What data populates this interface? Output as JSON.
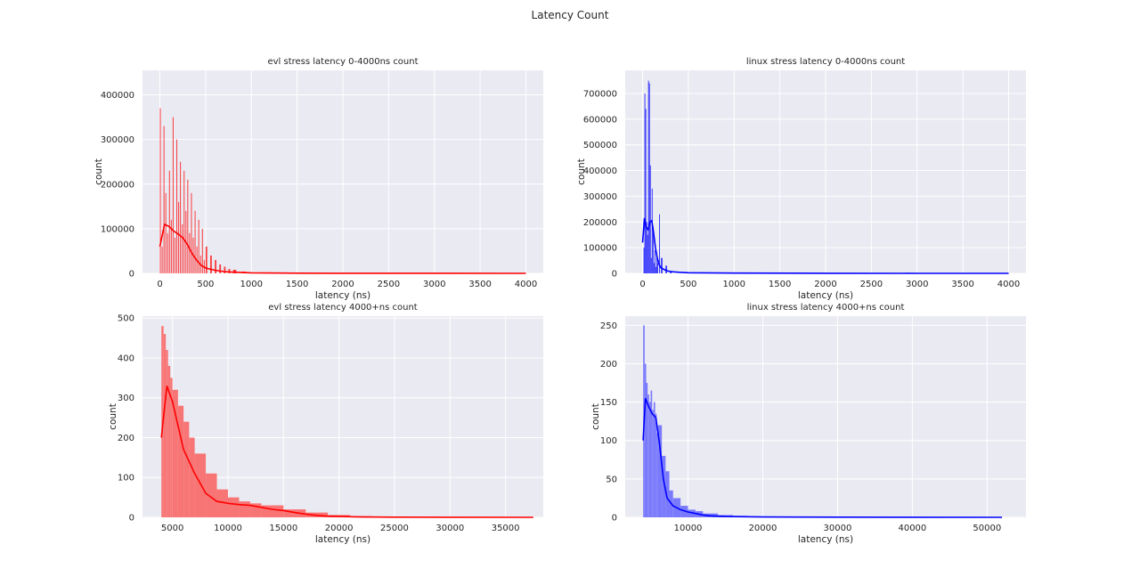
{
  "figure": {
    "title": "Latency Count",
    "background": "#ffffff",
    "axes_facecolor": "#eaeaf2",
    "grid_color": "#ffffff"
  },
  "chart_data": [
    {
      "type": "bar",
      "title": "evl stress latency 0-4000ns count",
      "xlabel": "latency (ns)",
      "ylabel": "count",
      "color": "#ff0000",
      "xlim": [
        -190,
        4190
      ],
      "ylim": [
        0,
        455000
      ],
      "xticks": [
        0,
        500,
        1000,
        1500,
        2000,
        2500,
        3000,
        3500,
        4000
      ],
      "yticks": [
        0,
        100000,
        200000,
        300000,
        400000
      ],
      "grid": true,
      "histogram_x": [
        0,
        20,
        40,
        60,
        80,
        100,
        120,
        140,
        160,
        180,
        200,
        220,
        240,
        260,
        280,
        300,
        320,
        340,
        360,
        380,
        400,
        420,
        440,
        460,
        480,
        500,
        550,
        600,
        650,
        700,
        750,
        800,
        900,
        1000
      ],
      "histogram_counts": [
        370000,
        60000,
        330000,
        180000,
        90000,
        230000,
        120000,
        350000,
        80000,
        300000,
        160000,
        250000,
        110000,
        230000,
        140000,
        210000,
        90000,
        180000,
        80000,
        140000,
        60000,
        120000,
        40000,
        100000,
        30000,
        60000,
        40000,
        30000,
        20000,
        15000,
        10000,
        8000,
        4000,
        2000
      ],
      "kde_x": [
        0,
        50,
        100,
        150,
        200,
        250,
        300,
        350,
        400,
        450,
        500,
        600,
        700,
        800,
        1000,
        1500,
        2000,
        3000,
        4000
      ],
      "kde_y": [
        60000,
        110000,
        105000,
        95000,
        88000,
        80000,
        65000,
        45000,
        30000,
        18000,
        12000,
        7000,
        4000,
        2500,
        1200,
        400,
        200,
        100,
        50
      ]
    },
    {
      "type": "bar",
      "title": "linux stress latency 0-4000ns count",
      "xlabel": "latency (ns)",
      "ylabel": "count",
      "color": "#0000ff",
      "xlim": [
        -190,
        4190
      ],
      "ylim": [
        0,
        790000
      ],
      "xticks": [
        0,
        500,
        1000,
        1500,
        2000,
        2500,
        3000,
        3500,
        4000
      ],
      "yticks": [
        0,
        100000,
        200000,
        300000,
        400000,
        500000,
        600000,
        700000
      ],
      "grid": true,
      "histogram_x": [
        10,
        20,
        30,
        40,
        50,
        60,
        70,
        80,
        90,
        100,
        110,
        120,
        130,
        140,
        150,
        160,
        180,
        200,
        250,
        300
      ],
      "histogram_counts": [
        100000,
        700000,
        640000,
        200000,
        150000,
        750000,
        740000,
        420000,
        60000,
        330000,
        180000,
        40000,
        90000,
        25000,
        80000,
        40000,
        230000,
        60000,
        30000,
        10000
      ],
      "kde_x": [
        0,
        20,
        40,
        60,
        80,
        100,
        120,
        140,
        160,
        180,
        200,
        250,
        300,
        400,
        500,
        1000,
        2000,
        3000,
        4000
      ],
      "kde_y": [
        120000,
        215000,
        180000,
        170000,
        200000,
        205000,
        160000,
        100000,
        60000,
        35000,
        22000,
        12000,
        7000,
        4000,
        2500,
        1000,
        300,
        100,
        50
      ]
    },
    {
      "type": "bar",
      "title": "evl stress latency 4000+ns count",
      "xlabel": "latency (ns)",
      "ylabel": "count",
      "color": "#ff0000",
      "bar_fill": "#f87575",
      "xlim": [
        2300,
        38400
      ],
      "ylim": [
        0,
        505
      ],
      "xticks": [
        5000,
        10000,
        15000,
        20000,
        25000,
        30000,
        35000
      ],
      "yticks": [
        0,
        100,
        200,
        300,
        400,
        500
      ],
      "grid": true,
      "histogram_x": [
        4000,
        4200,
        4400,
        4600,
        4800,
        5000,
        5500,
        6000,
        6500,
        7000,
        8000,
        9000,
        10000,
        11000,
        12000,
        13000,
        15000,
        17000,
        19000,
        21000
      ],
      "histogram_counts": [
        480,
        460,
        420,
        380,
        350,
        320,
        280,
        240,
        200,
        160,
        110,
        70,
        50,
        40,
        35,
        30,
        20,
        12,
        6,
        3
      ],
      "kde_x": [
        4000,
        4500,
        5000,
        5500,
        6000,
        7000,
        8000,
        9000,
        10000,
        11000,
        12000,
        13000,
        14000,
        15000,
        16000,
        17000,
        18000,
        19000,
        20000,
        22000,
        25000,
        30000,
        37500
      ],
      "kde_y": [
        200,
        330,
        290,
        230,
        170,
        110,
        60,
        40,
        35,
        32,
        30,
        25,
        20,
        17,
        12,
        8,
        5,
        3,
        2,
        1,
        0.5,
        0.2,
        0
      ]
    },
    {
      "type": "bar",
      "title": "linux stress latency 4000+ns count",
      "xlabel": "latency (ns)",
      "ylabel": "count",
      "color": "#0000ff",
      "bar_fill": "#7a7afc",
      "xlim": [
        1600,
        55200
      ],
      "ylim": [
        0,
        262
      ],
      "xticks": [
        10000,
        20000,
        30000,
        40000,
        50000
      ],
      "yticks": [
        0,
        50,
        100,
        150,
        200,
        250
      ],
      "grid": true,
      "histogram_x": [
        4000,
        4200,
        4400,
        4600,
        4800,
        5000,
        5200,
        5400,
        5600,
        5800,
        6000,
        6500,
        7000,
        7500,
        8000,
        9000,
        10000,
        11000,
        12000,
        14000,
        16000
      ],
      "histogram_counts": [
        250,
        200,
        175,
        160,
        150,
        165,
        140,
        150,
        135,
        110,
        120,
        80,
        60,
        35,
        25,
        15,
        10,
        8,
        5,
        3,
        2
      ],
      "kde_x": [
        4000,
        4300,
        4700,
        5200,
        5700,
        6200,
        6700,
        7200,
        8000,
        9000,
        10000,
        11000,
        12000,
        13000,
        15000,
        20000,
        30000,
        40000,
        52000
      ],
      "kde_y": [
        100,
        155,
        145,
        135,
        130,
        95,
        50,
        25,
        15,
        10,
        7,
        5,
        3,
        2,
        1,
        0.5,
        0.2,
        0.1,
        0
      ]
    }
  ]
}
